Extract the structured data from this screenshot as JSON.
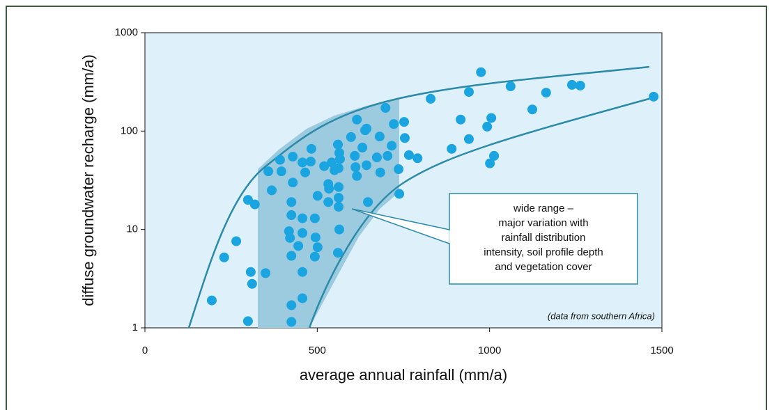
{
  "chart_data": {
    "type": "scatter",
    "x_label": "average annual rainfall (mm/a)",
    "y_label": "diffuse groundwater recharge (mm/a)",
    "note": "(data from southern Africa)",
    "annotation": [
      "wide range –",
      "major variation with",
      "rainfall distribution",
      "intensity, soil profile depth",
      "and vegetation cover"
    ],
    "xlim": [
      0,
      1500
    ],
    "xticks": [
      0,
      500,
      1000,
      1500
    ],
    "ylim": [
      1,
      1000
    ],
    "yticks": [
      1,
      10,
      100,
      1000
    ],
    "log_y": true,
    "color": "#1aa5e0",
    "x": [
      194,
      230,
      265,
      299,
      319,
      307,
      311,
      299,
      358,
      368,
      392,
      396,
      350,
      425,
      425,
      425,
      421,
      425,
      425,
      418,
      429,
      429,
      457,
      445,
      457,
      457,
      457,
      457,
      465,
      481,
      483,
      493,
      495,
      501,
      501,
      493,
      520,
      532,
      532,
      534,
      542,
      550,
      560,
      566,
      564,
      562,
      562,
      564,
      562,
      560,
      562,
      598,
      609,
      611,
      615,
      615,
      631,
      639,
      643,
      643,
      647,
      698,
      681,
      673,
      683,
      704,
      716,
      722,
      736,
      738,
      752,
      754,
      766,
      791,
      829,
      890,
      916,
      940,
      940,
      975,
      993,
      1005,
      1001,
      1013,
      1061,
      1124,
      1164,
      1239,
      1263,
      1476
    ],
    "values": [
      1.9,
      5.2,
      7.6,
      20,
      18,
      3.7,
      2.8,
      1.17,
      39,
      25,
      51,
      39,
      3.6,
      1.15,
      1.7,
      5.4,
      8.2,
      19,
      14,
      9.6,
      30,
      55,
      48,
      6.8,
      13,
      9.2,
      3.7,
      2,
      38,
      49,
      66,
      5.3,
      8.3,
      6.6,
      22,
      13,
      44,
      29,
      19,
      26,
      48,
      40,
      5.8,
      52,
      10,
      17,
      27,
      60,
      42,
      73,
      21,
      87,
      56,
      43,
      131,
      35,
      68,
      102,
      45,
      106,
      19,
      172,
      88,
      54,
      38,
      56,
      71,
      118,
      41,
      23,
      124,
      85,
      57,
      53,
      213,
      66,
      131,
      250,
      83,
      397,
      111,
      136,
      47,
      56,
      285,
      166,
      246,
      295,
      290,
      224
    ]
  }
}
